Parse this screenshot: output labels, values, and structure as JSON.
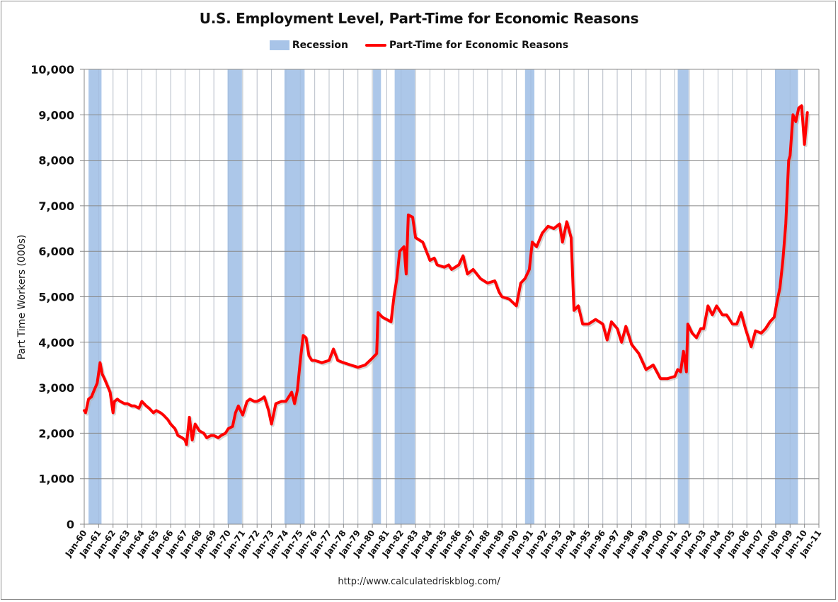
{
  "chart_data": {
    "type": "line",
    "title": "U.S. Employment Level, Part-Time for Economic Reasons",
    "xlabel": "",
    "ylabel": "Part Time Workers (000s)",
    "ylim": [
      0,
      10000
    ],
    "yticks": [
      0,
      1000,
      2000,
      3000,
      4000,
      5000,
      6000,
      7000,
      8000,
      9000,
      10000
    ],
    "ytick_labels": [
      "0",
      "1,000",
      "2,000",
      "3,000",
      "4,000",
      "5,000",
      "6,000",
      "7,000",
      "8,000",
      "9,000",
      "10,000"
    ],
    "xlim": [
      1960,
      2011
    ],
    "xtick_labels": [
      "Jan-60",
      "Jan-61",
      "Jan-62",
      "Jan-63",
      "Jan-64",
      "Jan-65",
      "Jan-66",
      "Jan-67",
      "Jan-68",
      "Jan-69",
      "Jan-70",
      "Jan-71",
      "Jan-72",
      "Jan-73",
      "Jan-74",
      "Jan-75",
      "Jan-76",
      "Jan-77",
      "Jan-78",
      "Jan-79",
      "Jan-80",
      "Jan-81",
      "Jan-82",
      "Jan-83",
      "Jan-84",
      "Jan-85",
      "Jan-86",
      "Jan-87",
      "Jan-88",
      "Jan-89",
      "Jan-90",
      "Jan-91",
      "Jan-92",
      "Jan-93",
      "Jan-94",
      "Jan-95",
      "Jan-96",
      "Jan-97",
      "Jan-98",
      "Jan-99",
      "Jan-00",
      "Jan-01",
      "Jan-02",
      "Jan-03",
      "Jan-04",
      "Jan-05",
      "Jan-06",
      "Jan-07",
      "Jan-08",
      "Jan-09",
      "Jan-10",
      "Jan-11"
    ],
    "grid": true,
    "legend_position": "top",
    "legend": [
      "Recession",
      "Part-Time for Economic Reasons"
    ],
    "recessions": [
      {
        "start": 1960.3,
        "end": 1961.2
      },
      {
        "start": 1969.95,
        "end": 1970.95
      },
      {
        "start": 1973.9,
        "end": 1975.3
      },
      {
        "start": 1980.05,
        "end": 1980.6
      },
      {
        "start": 1981.55,
        "end": 1982.95
      },
      {
        "start": 1990.6,
        "end": 1991.25
      },
      {
        "start": 2001.2,
        "end": 2001.95
      },
      {
        "start": 2007.95,
        "end": 2009.55
      }
    ],
    "series": [
      {
        "name": "Part-Time for Economic Reasons",
        "color": "#ff0000",
        "x": [
          1960.0,
          1960.1,
          1960.3,
          1960.5,
          1960.7,
          1960.9,
          1961.1,
          1961.25,
          1961.4,
          1961.6,
          1961.8,
          1962.0,
          1962.1,
          1962.3,
          1962.5,
          1962.8,
          1963.0,
          1963.3,
          1963.5,
          1963.8,
          1964.0,
          1964.3,
          1964.5,
          1964.8,
          1965.0,
          1965.3,
          1965.5,
          1965.8,
          1966.0,
          1966.3,
          1966.5,
          1966.8,
          1967.0,
          1967.1,
          1967.3,
          1967.5,
          1967.7,
          1968.0,
          1968.3,
          1968.5,
          1968.8,
          1969.0,
          1969.3,
          1969.5,
          1969.8,
          1970.0,
          1970.3,
          1970.5,
          1970.7,
          1971.0,
          1971.3,
          1971.5,
          1971.8,
          1972.0,
          1972.3,
          1972.5,
          1972.8,
          1973.0,
          1973.3,
          1973.7,
          1974.0,
          1974.4,
          1974.6,
          1974.8,
          1975.0,
          1975.2,
          1975.4,
          1975.6,
          1975.8,
          1976.0,
          1976.5,
          1977.0,
          1977.3,
          1977.6,
          1978.0,
          1978.5,
          1979.0,
          1979.5,
          1980.0,
          1980.3,
          1980.4,
          1980.7,
          1981.0,
          1981.3,
          1981.5,
          1981.7,
          1981.9,
          1982.2,
          1982.35,
          1982.5,
          1982.8,
          1983.0,
          1983.5,
          1984.0,
          1984.3,
          1984.5,
          1985.0,
          1985.3,
          1985.5,
          1986.0,
          1986.3,
          1986.6,
          1987.0,
          1987.5,
          1988.0,
          1988.5,
          1988.8,
          1989.0,
          1989.5,
          1990.0,
          1990.3,
          1990.6,
          1990.9,
          1991.1,
          1991.4,
          1991.8,
          1992.2,
          1992.6,
          1993.0,
          1993.2,
          1993.5,
          1993.8,
          1994.0,
          1994.3,
          1994.6,
          1995.0,
          1995.5,
          1996.0,
          1996.3,
          1996.6,
          1997.0,
          1997.3,
          1997.6,
          1998.0,
          1998.5,
          1999.0,
          1999.5,
          2000.0,
          2000.5,
          2001.0,
          2001.2,
          2001.4,
          2001.6,
          2001.8,
          2001.9,
          2002.2,
          2002.5,
          2002.8,
          2003.0,
          2003.3,
          2003.6,
          2003.9,
          2004.3,
          2004.6,
          2005.0,
          2005.3,
          2005.6,
          2005.9,
          2006.3,
          2006.6,
          2007.0,
          2007.3,
          2007.6,
          2007.9,
          2008.1,
          2008.3,
          2008.5,
          2008.7,
          2008.9,
          2009.0,
          2009.2,
          2009.4,
          2009.6,
          2009.8,
          2010.0,
          2010.2
        ],
        "values": [
          2500,
          2450,
          2750,
          2800,
          2950,
          3100,
          3550,
          3300,
          3200,
          3050,
          2900,
          2450,
          2700,
          2750,
          2700,
          2650,
          2650,
          2600,
          2600,
          2550,
          2700,
          2600,
          2550,
          2450,
          2500,
          2450,
          2400,
          2300,
          2200,
          2100,
          1950,
          1900,
          1850,
          1750,
          2350,
          1850,
          2200,
          2050,
          2000,
          1900,
          1950,
          1950,
          1900,
          1950,
          2000,
          2100,
          2150,
          2450,
          2600,
          2400,
          2700,
          2750,
          2700,
          2700,
          2750,
          2800,
          2500,
          2200,
          2650,
          2700,
          2700,
          2900,
          2650,
          2950,
          3600,
          4150,
          4100,
          3700,
          3600,
          3600,
          3550,
          3600,
          3850,
          3600,
          3550,
          3500,
          3450,
          3500,
          3650,
          3750,
          4650,
          4550,
          4500,
          4450,
          5000,
          5400,
          6000,
          6100,
          5500,
          6800,
          6750,
          6300,
          6200,
          5800,
          5850,
          5700,
          5650,
          5700,
          5600,
          5700,
          5900,
          5500,
          5600,
          5400,
          5300,
          5350,
          5100,
          5000,
          4950,
          4800,
          5300,
          5400,
          5600,
          6200,
          6100,
          6400,
          6550,
          6500,
          6600,
          6200,
          6650,
          6300,
          4700,
          4800,
          4400,
          4400,
          4500,
          4400,
          4050,
          4450,
          4300,
          4000,
          4350,
          3950,
          3750,
          3400,
          3500,
          3200,
          3200,
          3250,
          3400,
          3350,
          3800,
          3350,
          4400,
          4200,
          4100,
          4300,
          4300,
          4800,
          4600,
          4800,
          4600,
          4600,
          4400,
          4400,
          4650,
          4300,
          3900,
          4250,
          4200,
          4300,
          4450,
          4550,
          4900,
          5200,
          5800,
          6600,
          8000,
          8100,
          9000,
          8850,
          9150,
          9200,
          8350,
          9050
        ]
      }
    ]
  },
  "title": "U.S. Employment Level, Part-Time for Economic Reasons",
  "legend": {
    "recession_label": "Recession",
    "recession_color": "#a8c4e8",
    "series_label": "Part-Time for Economic Reasons",
    "series_color": "#ff0000"
  },
  "ylabel": "Part Time Workers (000s)",
  "footer": "http://www.calculatedriskblog.com/"
}
